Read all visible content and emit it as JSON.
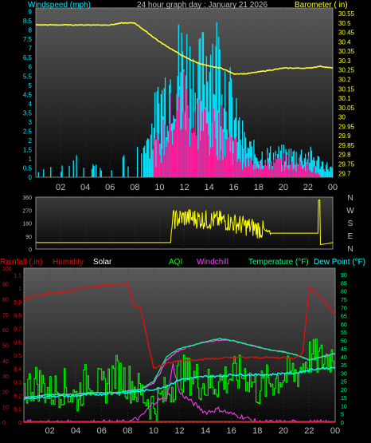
{
  "title": "24 hour graph day : January 21 2026",
  "colors": {
    "wind": "#00e5ff",
    "gust": "#ff1493",
    "barometer": "#ffff33",
    "direction": "#ffff00",
    "rain": "#ff0000",
    "humidity": "#e01010",
    "solar": "#ffffff",
    "aqi": "#00ff00",
    "windchill": "#ff40ff",
    "temperature": "#00ff80",
    "dewpoint": "#00ffff",
    "axis_text": "#bfbfbf"
  },
  "chart_data": [
    {
      "type": "line",
      "title": "",
      "ylabel_left": "Windspeed (mph)",
      "ylabel_right": "Barometer ( in)",
      "x_ticks": [
        "02",
        "04",
        "06",
        "08",
        "10",
        "12",
        "14",
        "16",
        "18",
        "20",
        "22",
        "00"
      ],
      "y_left_ticks": [
        "0",
        "0.5",
        "1",
        "1.5",
        "2",
        "2.5",
        "3",
        "3.5",
        "4",
        "4.5",
        "5",
        "5.5",
        "6",
        "6.5",
        "7",
        "7.5",
        "8",
        "8.5",
        "9"
      ],
      "y_right_ticks": [
        "29.7",
        "29.75",
        "29.8",
        "29.85",
        "29.9",
        "29.95",
        "30",
        "30.05",
        "30.1",
        "30.15",
        "30.2",
        "30.25",
        "30.3",
        "30.35",
        "30.4",
        "30.45",
        "30.5",
        "30.55"
      ],
      "ylim_left": [
        0,
        9.2
      ],
      "ylim_right": [
        29.68,
        30.58
      ],
      "series": [
        {
          "name": "Barometer",
          "x": [
            0,
            2,
            4,
            6,
            7,
            8,
            9,
            10,
            11,
            12,
            13,
            14,
            15,
            16,
            17,
            18,
            19,
            20,
            21,
            22,
            23,
            24
          ],
          "y": [
            30.49,
            30.49,
            30.49,
            30.49,
            30.5,
            30.5,
            30.45,
            30.4,
            30.36,
            30.32,
            30.29,
            30.27,
            30.26,
            30.23,
            30.23,
            30.24,
            30.25,
            30.26,
            30.26,
            30.26,
            30.27,
            30.26
          ]
        },
        {
          "name": "Wind Speed",
          "x": [
            0,
            1,
            2,
            3,
            4,
            5,
            6,
            7,
            8,
            9,
            10,
            11,
            12,
            13,
            14,
            15,
            16,
            17,
            18,
            19,
            20,
            21,
            22,
            23,
            24
          ],
          "y": [
            0,
            1,
            0,
            0,
            1,
            0,
            0,
            0,
            1,
            1.5,
            2,
            4,
            5,
            4,
            3,
            3,
            2,
            1,
            1,
            1,
            1,
            1,
            1,
            0,
            0
          ]
        },
        {
          "name": "Wind Gust",
          "x": [
            0,
            1,
            2,
            3,
            4,
            5,
            6,
            7,
            8,
            9,
            10,
            11,
            12,
            13,
            14,
            15,
            16,
            17,
            18,
            19,
            20,
            21,
            22,
            23,
            24
          ],
          "y": [
            0.5,
            1.5,
            0.5,
            1,
            1.5,
            0.5,
            0.5,
            1,
            1.5,
            2.5,
            5,
            7,
            8,
            6,
            8.5,
            7.5,
            4,
            2,
            1.5,
            1.5,
            1.5,
            1.5,
            1.5,
            1,
            0.5
          ]
        }
      ]
    },
    {
      "type": "line",
      "title": "",
      "y_ticks": [
        "0",
        "90",
        "180",
        "270",
        "360"
      ],
      "ylim": [
        0,
        360
      ],
      "direction_labels": [
        "N",
        "W",
        "S",
        "E",
        "N"
      ],
      "series": [
        {
          "name": "Wind Direction",
          "x": [
            0,
            2,
            4,
            6,
            8,
            9,
            10,
            10.9,
            11,
            12,
            13,
            14,
            15,
            16,
            17,
            18,
            19,
            20,
            21,
            22,
            22.9,
            23,
            24
          ],
          "y": [
            45,
            45,
            45,
            45,
            45,
            45,
            45,
            45,
            200,
            220,
            210,
            200,
            200,
            180,
            160,
            140,
            110,
            110,
            110,
            110,
            110,
            30,
            45
          ]
        }
      ]
    },
    {
      "type": "line",
      "title": "",
      "legend": [
        "Rainfall (.in)",
        "Humidity",
        "Solar",
        "AQI",
        "Windchill",
        "Temperature (°F)",
        "Dew Point (°F)"
      ],
      "y_left1_ticks": [
        "0",
        "10",
        "20",
        "30",
        "40",
        "50",
        "60",
        "70",
        "80",
        "90",
        "100"
      ],
      "y_left2_ticks": [
        "0",
        "0.1",
        "0.2",
        "0.3",
        "0.4",
        "0.5",
        "0.6",
        "0.7",
        "0.8",
        "0.9",
        "1",
        "1.1"
      ],
      "y_right_ticks": [
        "0",
        "5",
        "10",
        "15",
        "20",
        "25",
        "30",
        "35",
        "40",
        "45",
        "50",
        "55",
        "60",
        "65",
        "70",
        "75",
        "80",
        "85",
        "90"
      ],
      "ylim_humidity": [
        0,
        100
      ],
      "ylim_rain": [
        0,
        1.15
      ],
      "ylim_temp": [
        0,
        94
      ],
      "series": [
        {
          "name": "Humidity",
          "x": [
            0,
            1,
            2,
            3,
            4,
            5,
            6,
            7,
            8,
            8.5,
            9,
            10,
            11,
            12,
            14,
            16,
            18,
            20,
            21,
            21.5,
            22,
            23,
            24
          ],
          "y": [
            80,
            82,
            84,
            84,
            86,
            88,
            89,
            89,
            90,
            75,
            75,
            35,
            38,
            40,
            41,
            42,
            42,
            42,
            42,
            45,
            88,
            80,
            70
          ]
        },
        {
          "name": "Temperature (°F)",
          "x": [
            0,
            1,
            2,
            3,
            4,
            5,
            6,
            7,
            8,
            9,
            10,
            11,
            12,
            13,
            14,
            15,
            16,
            17,
            18,
            19,
            20,
            21,
            22,
            23,
            24
          ],
          "y": [
            15,
            16,
            17,
            17,
            17,
            18,
            18,
            18,
            19,
            20,
            25,
            40,
            45,
            47,
            49,
            51,
            50,
            48,
            46,
            44,
            43,
            41,
            38,
            40,
            42
          ]
        },
        {
          "name": "Dew Point (°F)",
          "x": [
            0,
            1,
            2,
            3,
            4,
            5,
            6,
            7,
            8,
            9,
            10,
            11,
            12,
            13,
            14,
            15,
            16,
            17,
            18,
            19,
            20,
            21,
            22,
            23,
            24
          ],
          "y": [
            14,
            15,
            16,
            16,
            16,
            17,
            17,
            18,
            18,
            19,
            20,
            22,
            26,
            27,
            28,
            28,
            29,
            29,
            29,
            29,
            30,
            30,
            32,
            33,
            33
          ]
        },
        {
          "name": "Windchill",
          "x": [
            0,
            1,
            2,
            3,
            4,
            5,
            6,
            7,
            8,
            9,
            10,
            10.5,
            11,
            12,
            13,
            14,
            15,
            16,
            17,
            18,
            19,
            20,
            21,
            22,
            23,
            24
          ],
          "y": [
            15,
            16,
            17,
            17,
            17,
            18,
            18,
            18,
            19,
            20,
            24,
            30,
            38,
            44,
            47,
            49,
            50,
            50,
            48,
            46,
            44,
            43,
            41,
            38,
            40,
            42
          ]
        },
        {
          "name": "Solar",
          "x": [
            0,
            6,
            8,
            9,
            10,
            10.5,
            11,
            11.5,
            12,
            13,
            14,
            15,
            16,
            17,
            18,
            20,
            22,
            24
          ],
          "y": [
            0,
            0,
            0,
            3,
            12,
            14,
            14,
            35,
            18,
            12,
            6,
            8,
            5,
            3,
            0,
            0,
            0,
            0
          ]
        },
        {
          "name": "AQI",
          "x": [
            0,
            1,
            2,
            3,
            4,
            5,
            6,
            7,
            8,
            9,
            10,
            11,
            12,
            13,
            14,
            15,
            16,
            17,
            18,
            19,
            20,
            21,
            22,
            23,
            24
          ],
          "y": [
            20,
            25,
            18,
            22,
            15,
            28,
            20,
            30,
            25,
            18,
            10,
            18,
            30,
            28,
            22,
            25,
            28,
            30,
            20,
            25,
            28,
            30,
            40,
            38,
            42
          ]
        },
        {
          "name": "Rainfall (.in)",
          "x": [
            0,
            24
          ],
          "y": [
            0,
            0
          ]
        }
      ]
    }
  ]
}
